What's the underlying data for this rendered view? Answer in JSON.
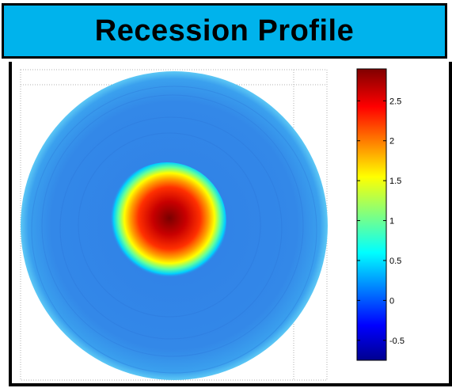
{
  "title": "Recession Profile",
  "chart_data": {
    "type": "heatmap",
    "title": "",
    "xlabel": "",
    "ylabel": "",
    "colormap": "jet",
    "colorbar": {
      "min": -0.75,
      "max": 2.9,
      "ticks": [
        -0.5,
        0,
        0.5,
        1,
        1.5,
        2,
        2.5
      ],
      "tick_labels": [
        "-0.5",
        "0",
        "0.5",
        "1",
        "1.5",
        "2",
        "2.5"
      ]
    },
    "background_value": 0.1,
    "peak_value": 2.9,
    "grid": true
  },
  "colors": {
    "banner": "#00b3ec",
    "frame": "#000000"
  }
}
